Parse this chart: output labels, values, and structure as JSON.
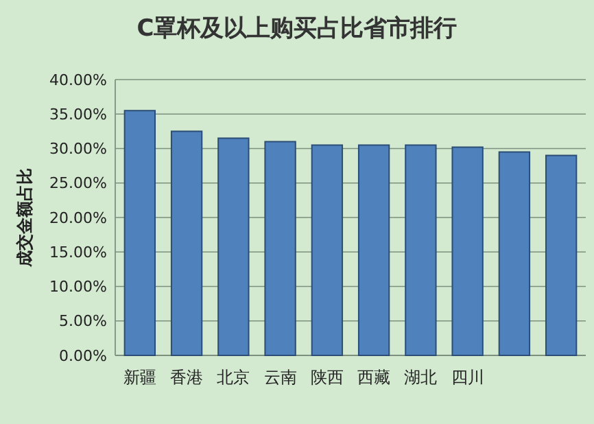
{
  "chart_data": {
    "type": "bar",
    "title": "C罩杯及以上购买占比省市排行",
    "ylabel": "成交金额占比",
    "categories": [
      "新疆",
      "香港",
      "北京",
      "云南",
      "陕西",
      "西藏",
      "湖北",
      "四川",
      null,
      null
    ],
    "values": [
      35.5,
      32.5,
      31.5,
      31.0,
      30.5,
      30.5,
      30.5,
      30.2,
      29.5,
      29.0
    ],
    "color": "#4f81bd",
    "ylim": [
      0,
      40
    ],
    "yticks": [
      {
        "value": 0,
        "label": "0.00%"
      },
      {
        "value": 5,
        "label": "5.00%"
      },
      {
        "value": 10,
        "label": "10.00%"
      },
      {
        "value": 15,
        "label": "15.00%"
      },
      {
        "value": 20,
        "label": "20.00%"
      },
      {
        "value": 25,
        "label": "25.00%"
      },
      {
        "value": 30,
        "label": "30.00%"
      },
      {
        "value": 35,
        "label": "35.00%"
      },
      {
        "value": 40,
        "label": "40.00%"
      }
    ],
    "grid": "y"
  }
}
